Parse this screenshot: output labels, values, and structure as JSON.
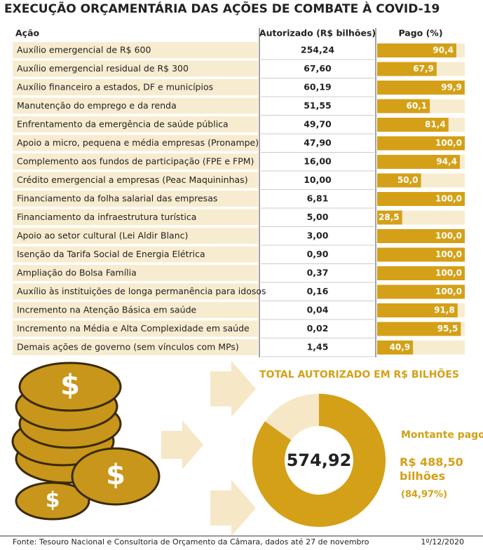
{
  "title": "EXECUÇÃO ORÇAMENTÁRIA DAS AÇÕES DE COMBATE À COVID-19",
  "table": {
    "headers": [
      "Ação",
      "Autorizado (R$ bilhões)",
      "Pago (%)"
    ],
    "paid_xlim": [
      0,
      100
    ],
    "rows": [
      {
        "action": "Auxílio emergencial de R$ 600",
        "authorized": "254,24",
        "paid": {
          "value": 90.4,
          "label": "90,4"
        }
      },
      {
        "action": "Auxílio emergencial residual de R$ 300",
        "authorized": "67,60",
        "paid": {
          "value": 67.9,
          "label": "67,9"
        }
      },
      {
        "action": "Auxílio financeiro a estados, DF e municípios",
        "authorized": "60,19",
        "paid": {
          "value": 99.9,
          "label": "99,9"
        }
      },
      {
        "action": "Manutenção do emprego e da renda",
        "authorized": "51,55",
        "paid": {
          "value": 60.1,
          "label": "60,1"
        }
      },
      {
        "action": "Enfrentamento da emergência de saúde pública",
        "authorized": "49,70",
        "paid": {
          "value": 81.4,
          "label": "81,4"
        }
      },
      {
        "action": "Apoio a micro, pequena e média empresas (Pronampe)",
        "authorized": "47,90",
        "paid": {
          "value": 100,
          "label": "100,0"
        }
      },
      {
        "action": "Complemento aos fundos de participação (FPE e FPM)",
        "authorized": "16,00",
        "paid": {
          "value": 94.4,
          "label": "94,4"
        }
      },
      {
        "action": "Crédito emergencial a empresas (Peac Maquininhas)",
        "authorized": "10,00",
        "paid": {
          "value": 50,
          "label": "50,0"
        }
      },
      {
        "action": "Financiamento da folha salarial das empresas",
        "authorized": "6,81",
        "paid": {
          "value": 100,
          "label": "100,0"
        }
      },
      {
        "action": "Financiamento da infraestrutura turística",
        "authorized": "5,00",
        "paid": {
          "value": 28.5,
          "label": "28,5"
        }
      },
      {
        "action": "Apoio ao setor cultural (Lei Aldir Blanc)",
        "authorized": "3,00",
        "paid": {
          "value": 100,
          "label": "100,0"
        }
      },
      {
        "action": "Isenção da Tarifa Social de Energia Elétrica",
        "authorized": "0,90",
        "paid": {
          "value": 100,
          "label": "100,0"
        }
      },
      {
        "action": "Ampliação do Bolsa Família",
        "authorized": "0,37",
        "paid": {
          "value": 100,
          "label": "100,0"
        }
      },
      {
        "action": "Auxílio às instituições de longa permanência para idosos",
        "authorized": "0,16",
        "paid": {
          "value": 100,
          "label": "100,0"
        }
      },
      {
        "action": "Incremento na Atenção Básica em saúde",
        "authorized": "0,04",
        "paid": {
          "value": 91.8,
          "label": "91,8"
        }
      },
      {
        "action": "Incremento na Média e Alta Complexidade em saúde",
        "authorized": "0,02",
        "paid": {
          "value": 95.5,
          "label": "95,5"
        }
      },
      {
        "action": "Demais ações de governo (sem vínculos com MPs)",
        "authorized": "1,45",
        "paid": {
          "value": 40.9,
          "label": "40,9"
        }
      }
    ]
  },
  "donut": {
    "title": "TOTAL AUTORIZADO EM R$ BILHÕES",
    "total": "574,92",
    "paid_caption": "Montante pago:",
    "paid_amount": "R$ 488,50 bilhões",
    "paid_share": {
      "value": 84.97,
      "label": "(84,97%)"
    }
  },
  "footer": {
    "source": "Fonte: Tesouro Nacional e Consultoria de Orçamento da Câmara, dados até 27 de novembro",
    "date": "1º/12/2020"
  }
}
